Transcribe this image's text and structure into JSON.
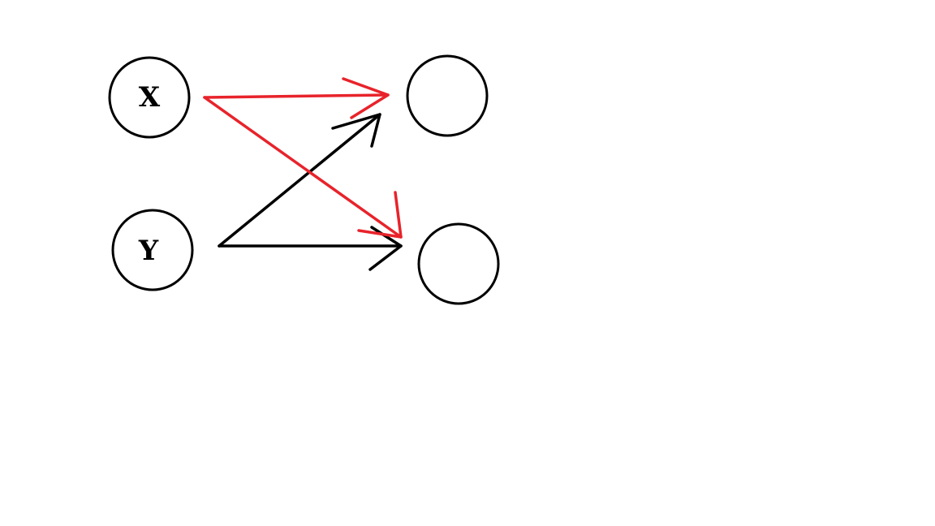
{
  "diagram": {
    "nodes": [
      {
        "id": "x",
        "label": "X"
      },
      {
        "id": "y",
        "label": "Y"
      },
      {
        "id": "out1",
        "label": ""
      },
      {
        "id": "out2",
        "label": ""
      }
    ],
    "edges": [
      {
        "from": "x",
        "to": "out1",
        "color": "#e8232b"
      },
      {
        "from": "x",
        "to": "out2",
        "color": "#e8232b"
      },
      {
        "from": "y",
        "to": "out1",
        "color": "#000000"
      },
      {
        "from": "y",
        "to": "out2",
        "color": "#000000"
      }
    ],
    "colors": {
      "node_stroke": "#000000",
      "label": "#000000",
      "background": "#ffffff"
    }
  }
}
